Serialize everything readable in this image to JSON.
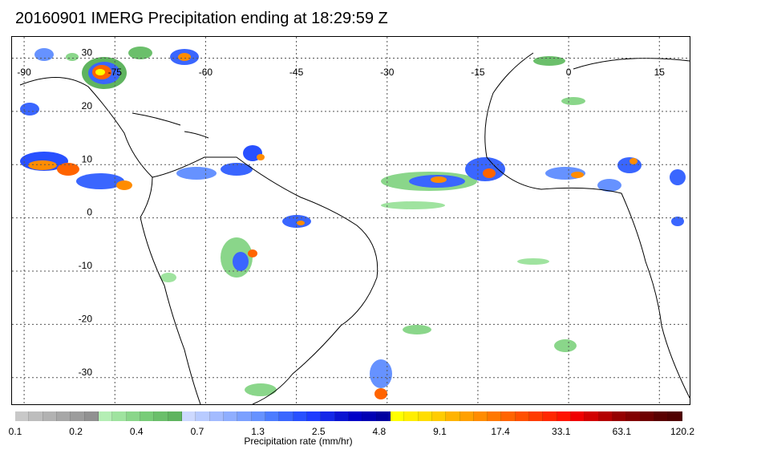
{
  "title": "20160901 IMERG Precipitation ending at 18:29:59 Z",
  "map": {
    "lon_labels": [
      "-90",
      "-75",
      "-60",
      "-45",
      "-30",
      "-15",
      "0",
      "15"
    ],
    "lat_labels": [
      "30",
      "20",
      "10",
      "0",
      "-10",
      "-20",
      "-30"
    ],
    "lon_range": [
      -92,
      20
    ],
    "lat_range": [
      -35,
      34
    ]
  },
  "colorbar": {
    "title": "Precipitation rate (mm/hr)",
    "tick_labels": [
      "0.1",
      "0.2",
      "0.4",
      "0.7",
      "1.3",
      "2.5",
      "4.8",
      "9.1",
      "17.4",
      "33.1",
      "63.1",
      "120.2"
    ],
    "colors": [
      "#c8c8c8",
      "#bdbdbd",
      "#b2b2b2",
      "#a7a7a7",
      "#9c9c9c",
      "#919191",
      "#b4eeb4",
      "#9fe39f",
      "#8ad68a",
      "#78cc78",
      "#6bbf6b",
      "#5fb45f",
      "#cdd9ff",
      "#b8cbff",
      "#a3bbff",
      "#8faeff",
      "#7ba0ff",
      "#6692ff",
      "#4c7cff",
      "#3a66ff",
      "#2850ff",
      "#1e3cff",
      "#1428e8",
      "#0a14d2",
      "#0000c8",
      "#0000b4",
      "#0000a0",
      "#ffff00",
      "#ffee00",
      "#ffdd00",
      "#ffcc00",
      "#ffb400",
      "#ffa000",
      "#ff8c00",
      "#ff7800",
      "#ff6400",
      "#ff5000",
      "#ff3c00",
      "#ff2800",
      "#ff1400",
      "#f00000",
      "#d20000",
      "#b40000",
      "#960000",
      "#820000",
      "#6e0000",
      "#5a0000",
      "#500000"
    ]
  }
}
